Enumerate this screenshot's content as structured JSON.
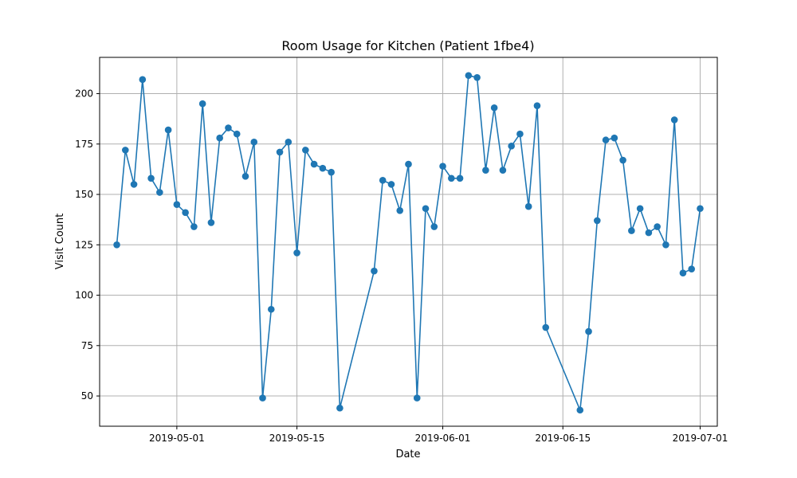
{
  "chart_data": {
    "type": "line",
    "title": "Room Usage for Kitchen (Patient 1fbe4)",
    "xlabel": "Date",
    "ylabel": "Visit Count",
    "grid": true,
    "legend": "none",
    "colors": {
      "series": "#1f77b4",
      "grid": "#b0b0b0"
    },
    "x_ticks": [
      "2019-05-01",
      "2019-05-15",
      "2019-06-01",
      "2019-06-15",
      "2019-07-01"
    ],
    "y_ticks": [
      50,
      75,
      100,
      125,
      150,
      175,
      200
    ],
    "xlim": [
      "2019-04-22",
      "2019-07-03"
    ],
    "ylim": [
      35,
      218
    ],
    "series": [
      {
        "x": [
          "2019-04-24",
          "2019-04-25",
          "2019-04-26",
          "2019-04-27",
          "2019-04-28",
          "2019-04-29",
          "2019-04-30",
          "2019-05-01",
          "2019-05-02",
          "2019-05-03",
          "2019-05-04",
          "2019-05-05",
          "2019-05-06",
          "2019-05-07",
          "2019-05-08",
          "2019-05-09",
          "2019-05-10",
          "2019-05-11",
          "2019-05-12",
          "2019-05-13",
          "2019-05-14",
          "2019-05-15",
          "2019-05-16",
          "2019-05-17",
          "2019-05-18",
          "2019-05-19",
          "2019-05-20",
          "2019-05-24",
          "2019-05-25",
          "2019-05-26",
          "2019-05-27",
          "2019-05-28",
          "2019-05-29",
          "2019-05-30",
          "2019-05-31",
          "2019-06-01",
          "2019-06-02",
          "2019-06-03",
          "2019-06-04",
          "2019-06-05",
          "2019-06-06",
          "2019-06-07",
          "2019-06-08",
          "2019-06-09",
          "2019-06-10",
          "2019-06-11",
          "2019-06-12",
          "2019-06-13",
          "2019-06-17",
          "2019-06-18",
          "2019-06-19",
          "2019-06-20",
          "2019-06-21",
          "2019-06-22",
          "2019-06-23",
          "2019-06-24",
          "2019-06-25",
          "2019-06-26",
          "2019-06-27",
          "2019-06-28",
          "2019-06-29",
          "2019-06-30"
        ],
        "values": [
          125,
          172,
          155,
          207,
          158,
          151,
          182,
          145,
          141,
          134,
          195,
          136,
          178,
          183,
          180,
          159,
          176,
          49,
          93,
          171,
          176,
          121,
          172,
          165,
          163,
          161,
          44,
          112,
          157,
          155,
          142,
          165,
          49,
          143,
          134,
          164,
          158,
          158,
          209,
          208,
          162,
          193,
          162,
          174,
          180,
          144,
          194,
          84,
          43,
          82,
          137,
          177,
          178,
          167,
          132,
          143,
          131,
          134,
          125,
          187,
          111,
          113
        ]
      }
    ]
  },
  "extra_point": {
    "x": "2019-07-01",
    "value": 143
  }
}
